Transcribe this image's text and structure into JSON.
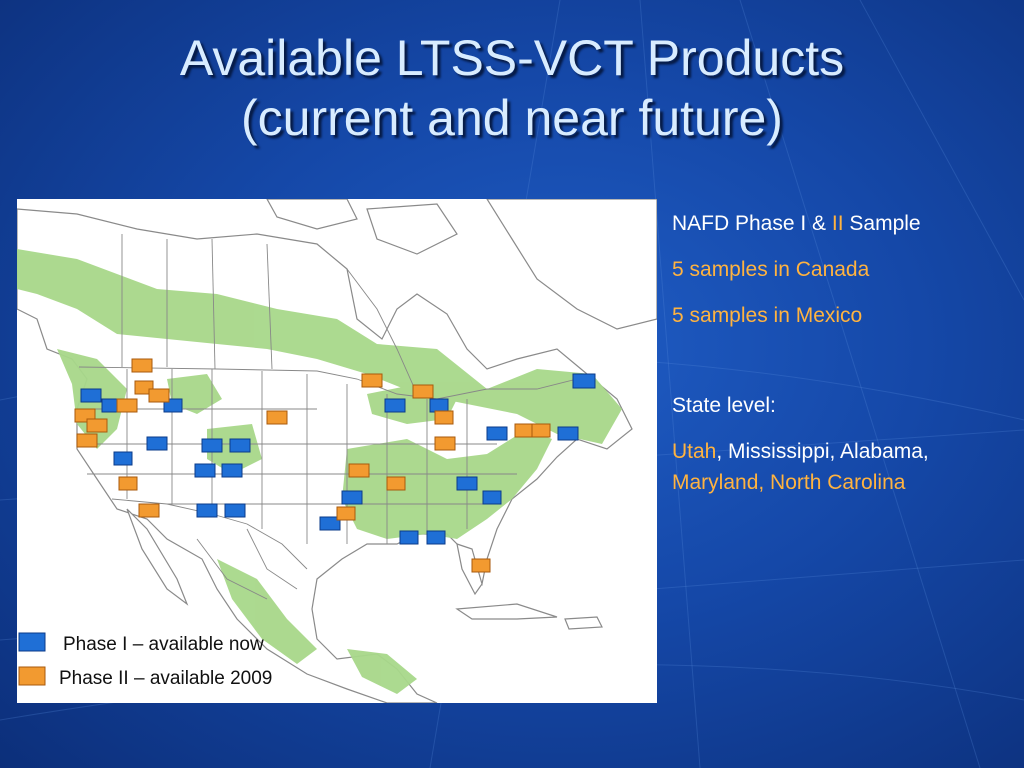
{
  "slide": {
    "title_line1": "Available LTSS-VCT Products",
    "title_line2": "(current and near future)"
  },
  "map": {
    "legend": {
      "phase1": "Phase I – available now",
      "phase2": "Phase II – available 2009"
    },
    "colors": {
      "phase1": "#1f6fd6",
      "phase2": "#f29a30",
      "forest": "#a8d88a",
      "land": "#ffffff",
      "borders": "#777777"
    }
  },
  "side_panel": {
    "line1_a": "NAFD Phase I & ",
    "line1_b": "II",
    "line1_c": " Sample",
    "canada": "5 samples in Canada",
    "mexico": "5 samples in Mexico",
    "state_level": "State level:",
    "states_utah": "Utah",
    "states_sep1": ", Mississippi, Alabama, ",
    "states_md_nc": "Maryland, North Carolina"
  }
}
